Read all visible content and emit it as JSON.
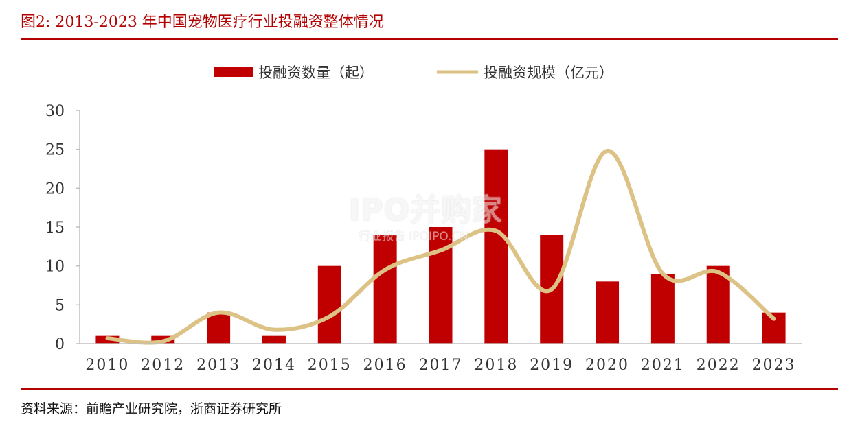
{
  "figure": {
    "title": "图2:   2013-2023 年中国宠物医疗行业投融资整体情况",
    "source": "资料来源：前瞻产业研究院，浙商证券研究所"
  },
  "watermark": {
    "main": "IPO并购家",
    "sub": "行业报告 IPOIPO.CN"
  },
  "colors": {
    "bar": "#c00000",
    "line": "#dcc285",
    "title": "#b30000",
    "axis": "#bfbfbf",
    "text": "#333333"
  },
  "chart_data": {
    "type": "bar",
    "categories": [
      "2010",
      "2012",
      "2013",
      "2014",
      "2015",
      "2016",
      "2017",
      "2018",
      "2019",
      "2020",
      "2021",
      "2022",
      "2023"
    ],
    "series": [
      {
        "name": "投融资数量（起）",
        "type": "bar",
        "values": [
          1,
          1,
          4,
          1,
          10,
          14,
          15,
          25,
          14,
          8,
          9,
          10,
          4
        ]
      },
      {
        "name": "投融资规模（亿元）",
        "type": "line",
        "smooth": true,
        "values": [
          0.7,
          0.3,
          4,
          1.8,
          3.5,
          9.5,
          12,
          14.5,
          7,
          24.8,
          9,
          9.2,
          3.2
        ]
      }
    ],
    "yticks": [
      "0",
      "5",
      "10",
      "15",
      "20",
      "25",
      "30"
    ],
    "ylim": [
      0,
      30
    ],
    "grid": false,
    "legend": "top-center"
  }
}
